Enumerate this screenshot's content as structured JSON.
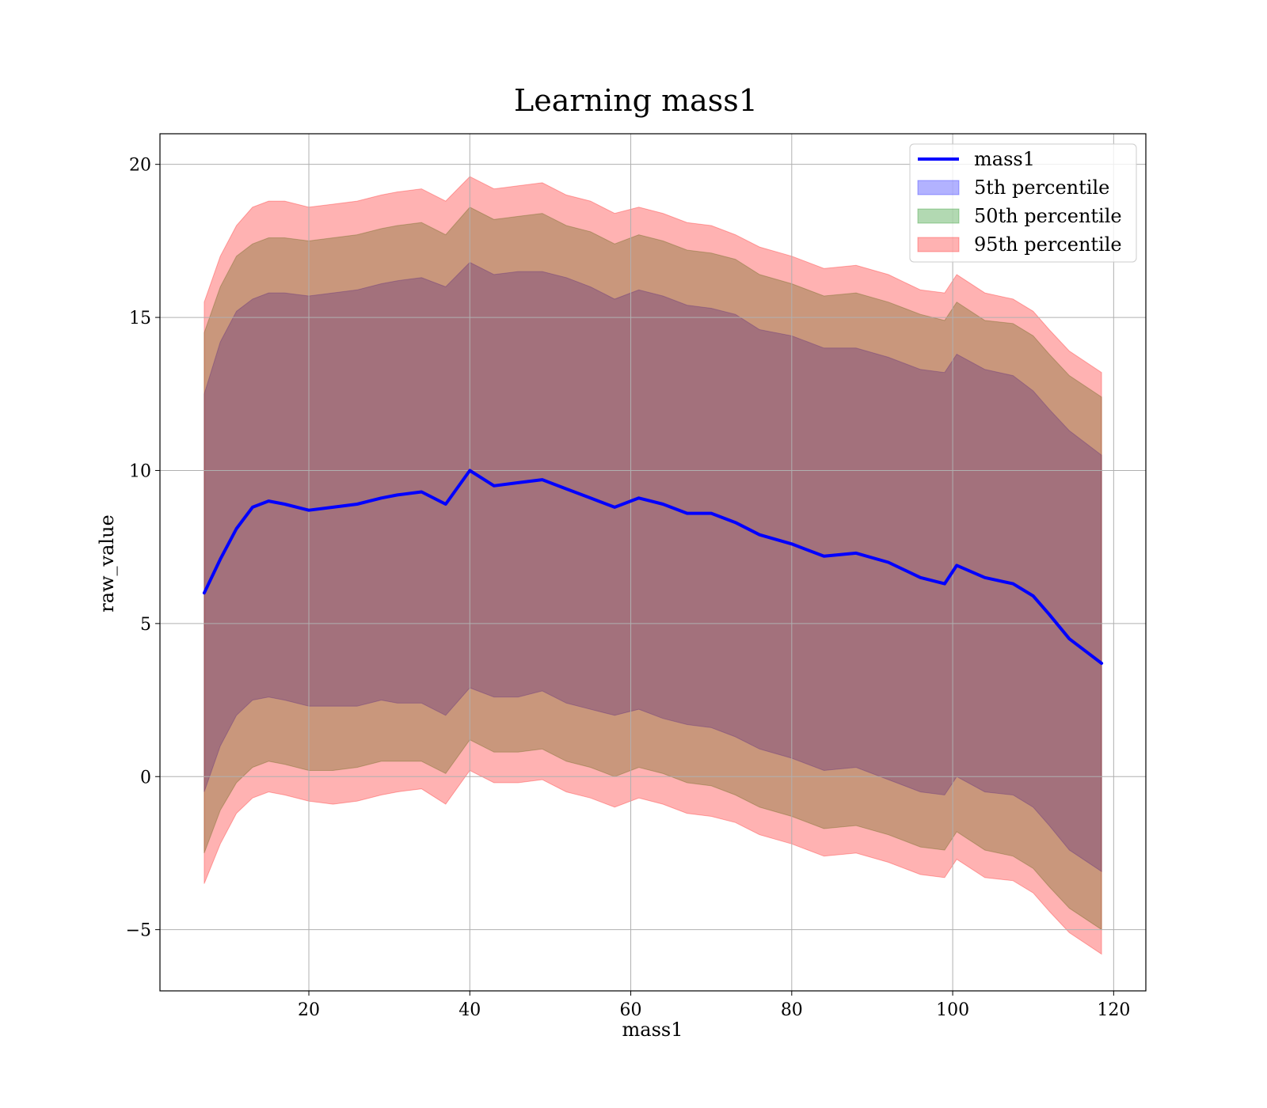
{
  "chart_data": {
    "type": "area",
    "title": "Learning mass1",
    "xlabel": "mass1",
    "ylabel": "raw_value",
    "xlim": [
      1.5,
      124
    ],
    "ylim": [
      -7,
      21
    ],
    "xticks": [
      20,
      40,
      60,
      80,
      100,
      120
    ],
    "xtick_labels": [
      "20",
      "40",
      "60",
      "80",
      "100",
      "120"
    ],
    "yticks": [
      -5,
      0,
      5,
      10,
      15,
      20
    ],
    "ytick_labels": [
      "−5",
      "0",
      "5",
      "10",
      "15",
      "20"
    ],
    "grid": true,
    "legend_position": "top-right",
    "x": [
      7,
      9,
      11,
      13,
      15,
      17,
      20,
      23,
      26,
      29,
      31,
      34,
      37,
      40,
      43,
      46,
      49,
      52,
      55,
      58,
      61,
      64,
      67,
      70,
      73,
      76,
      80,
      84,
      88,
      92,
      96,
      99,
      100.5,
      104,
      107.5,
      110,
      112,
      114.5,
      118.5
    ],
    "series": [
      {
        "name": "mass1",
        "kind": "line",
        "color": "#0000ff",
        "values": [
          6.0,
          7.1,
          8.1,
          8.8,
          9.0,
          8.9,
          8.7,
          8.8,
          8.9,
          9.1,
          9.2,
          9.3,
          8.9,
          10.0,
          9.5,
          9.6,
          9.7,
          9.4,
          9.1,
          8.8,
          9.1,
          8.9,
          8.6,
          8.6,
          8.3,
          7.9,
          7.6,
          7.2,
          7.3,
          7.0,
          6.5,
          6.3,
          6.9,
          6.5,
          6.3,
          5.9,
          5.3,
          4.5,
          3.7
        ]
      },
      {
        "name": "5th percentile",
        "kind": "band",
        "color": "#0000ff",
        "opacity": 0.3,
        "upper": [
          12.5,
          14.2,
          15.2,
          15.6,
          15.8,
          15.8,
          15.7,
          15.8,
          15.9,
          16.1,
          16.2,
          16.3,
          16.0,
          16.8,
          16.4,
          16.5,
          16.5,
          16.3,
          16.0,
          15.6,
          15.9,
          15.7,
          15.4,
          15.3,
          15.1,
          14.6,
          14.4,
          14.0,
          14.0,
          13.7,
          13.3,
          13.2,
          13.8,
          13.3,
          13.1,
          12.6,
          12.0,
          11.3,
          10.5
        ],
        "lower": [
          -0.5,
          1.0,
          2.0,
          2.5,
          2.6,
          2.5,
          2.3,
          2.3,
          2.3,
          2.5,
          2.4,
          2.4,
          2.0,
          2.9,
          2.6,
          2.6,
          2.8,
          2.4,
          2.2,
          2.0,
          2.2,
          1.9,
          1.7,
          1.6,
          1.3,
          0.9,
          0.6,
          0.2,
          0.3,
          -0.1,
          -0.5,
          -0.6,
          0.0,
          -0.5,
          -0.6,
          -1.0,
          -1.6,
          -2.4,
          -3.1
        ]
      },
      {
        "name": "50th percentile",
        "kind": "band",
        "color": "#008000",
        "opacity": 0.3,
        "upper": [
          14.5,
          16.0,
          17.0,
          17.4,
          17.6,
          17.6,
          17.5,
          17.6,
          17.7,
          17.9,
          18.0,
          18.1,
          17.7,
          18.6,
          18.2,
          18.3,
          18.4,
          18.0,
          17.8,
          17.4,
          17.7,
          17.5,
          17.2,
          17.1,
          16.9,
          16.4,
          16.1,
          15.7,
          15.8,
          15.5,
          15.1,
          14.9,
          15.5,
          14.9,
          14.8,
          14.4,
          13.8,
          13.1,
          12.4
        ],
        "lower": [
          -2.5,
          -1.1,
          -0.2,
          0.3,
          0.5,
          0.4,
          0.2,
          0.2,
          0.3,
          0.5,
          0.5,
          0.5,
          0.1,
          1.2,
          0.8,
          0.8,
          0.9,
          0.5,
          0.3,
          0.0,
          0.3,
          0.1,
          -0.2,
          -0.3,
          -0.6,
          -1.0,
          -1.3,
          -1.7,
          -1.6,
          -1.9,
          -2.3,
          -2.4,
          -1.8,
          -2.4,
          -2.6,
          -3.0,
          -3.6,
          -4.3,
          -5.0
        ]
      },
      {
        "name": "95th percentile",
        "kind": "band",
        "color": "#ff0000",
        "opacity": 0.3,
        "upper": [
          15.5,
          17.0,
          18.0,
          18.6,
          18.8,
          18.8,
          18.6,
          18.7,
          18.8,
          19.0,
          19.1,
          19.2,
          18.8,
          19.6,
          19.2,
          19.3,
          19.4,
          19.0,
          18.8,
          18.4,
          18.6,
          18.4,
          18.1,
          18.0,
          17.7,
          17.3,
          17.0,
          16.6,
          16.7,
          16.4,
          15.9,
          15.8,
          16.4,
          15.8,
          15.6,
          15.2,
          14.6,
          13.9,
          13.2
        ],
        "lower": [
          -3.5,
          -2.2,
          -1.2,
          -0.7,
          -0.5,
          -0.6,
          -0.8,
          -0.9,
          -0.8,
          -0.6,
          -0.5,
          -0.4,
          -0.9,
          0.2,
          -0.2,
          -0.2,
          -0.1,
          -0.5,
          -0.7,
          -1.0,
          -0.7,
          -0.9,
          -1.2,
          -1.3,
          -1.5,
          -1.9,
          -2.2,
          -2.6,
          -2.5,
          -2.8,
          -3.2,
          -3.3,
          -2.7,
          -3.3,
          -3.4,
          -3.8,
          -4.4,
          -5.1,
          -5.8
        ]
      }
    ]
  }
}
